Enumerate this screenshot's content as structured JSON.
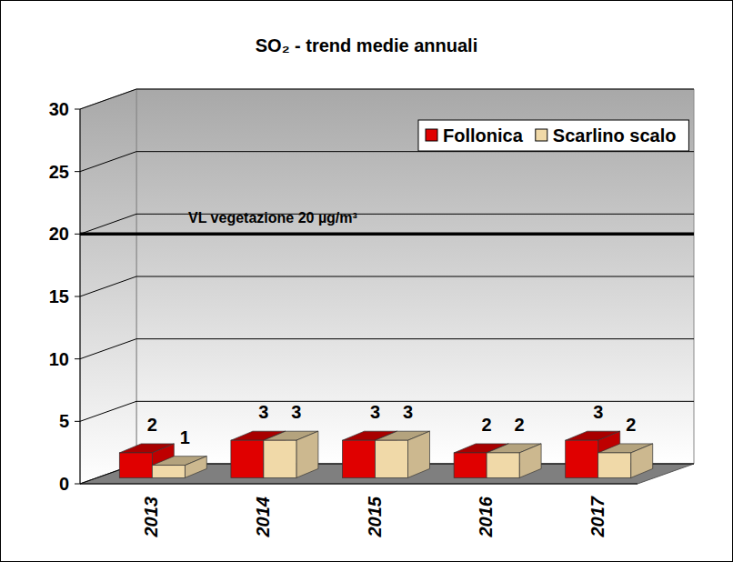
{
  "chart_data": {
    "type": "bar",
    "title": "SO₂ - trend medie annuali",
    "categories": [
      "2013",
      "2014",
      "2015",
      "2016",
      "2017"
    ],
    "series": [
      {
        "name": "Follonica",
        "color": "#e00000",
        "values": [
          2,
          3,
          3,
          2,
          3
        ]
      },
      {
        "name": "Scarlino scalo",
        "color": "#f0d9a8",
        "values": [
          1,
          3,
          3,
          2,
          2
        ]
      }
    ],
    "threshold": {
      "value": 20,
      "label": "VL vegetazione 20 µg/m³"
    },
    "ylim": [
      0,
      30
    ],
    "yticks": [
      0,
      5,
      10,
      15,
      20,
      25,
      30
    ],
    "grid": true,
    "legend": "top-right",
    "data_labels": true
  }
}
